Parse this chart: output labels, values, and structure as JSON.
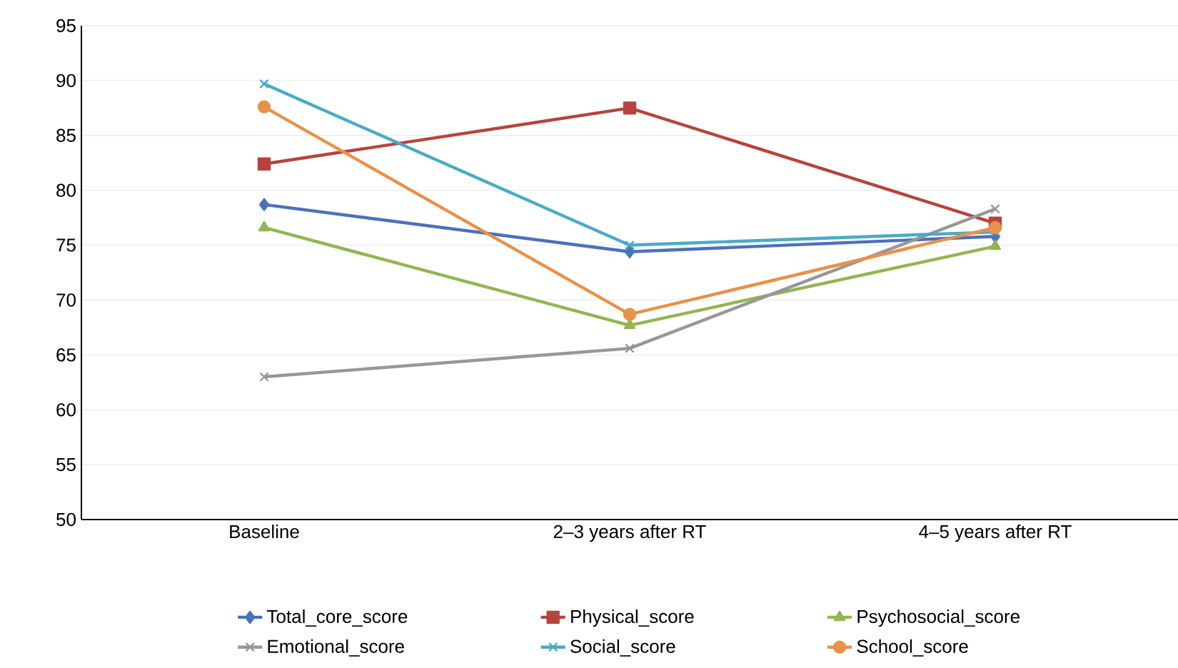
{
  "chart_data": {
    "type": "line",
    "categories": [
      "Baseline",
      "2–3 years after RT",
      "4–5 years after RT"
    ],
    "ylim": [
      50,
      95
    ],
    "yticks": [
      50,
      55,
      60,
      65,
      70,
      75,
      80,
      85,
      90,
      95
    ],
    "grid": "y",
    "legend": "bottom",
    "series": [
      {
        "name": "Total_core_score",
        "color": "#4a72b8",
        "marker": "diamond",
        "values": [
          78.7,
          74.4,
          75.8
        ]
      },
      {
        "name": "Physical_score",
        "color": "#b5443f",
        "marker": "square",
        "values": [
          82.4,
          87.5,
          77.0
        ]
      },
      {
        "name": "Psychosocial_score",
        "color": "#93b553",
        "marker": "triangle",
        "values": [
          76.6,
          67.7,
          74.9
        ]
      },
      {
        "name": "Emotional_score",
        "color": "#979797",
        "marker": "cross",
        "values": [
          63.0,
          65.6,
          78.3
        ]
      },
      {
        "name": "Social_score",
        "color": "#4aabc6",
        "marker": "cross",
        "values": [
          89.7,
          75.0,
          76.2
        ]
      },
      {
        "name": "School_score",
        "color": "#e8914a",
        "marker": "circle",
        "values": [
          87.6,
          68.7,
          76.6
        ]
      }
    ]
  }
}
